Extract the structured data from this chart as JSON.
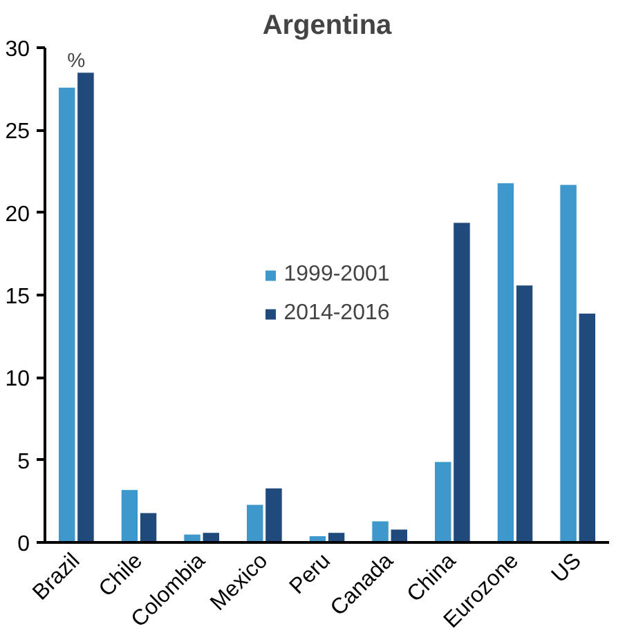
{
  "chart_data": {
    "type": "bar",
    "title": "Argentina",
    "annotations": [
      "%"
    ],
    "categories": [
      "Brazil",
      "Chile",
      "Colombia",
      "Mexico",
      "Peru",
      "Canada",
      "China",
      "Eurozone",
      "US"
    ],
    "series": [
      {
        "name": "1999-2001",
        "color": "#3f98cb",
        "values": [
          27.6,
          3.2,
          0.5,
          2.3,
          0.4,
          1.3,
          4.9,
          21.8,
          21.7
        ]
      },
      {
        "name": "2014-2016",
        "color": "#204a7c",
        "values": [
          28.5,
          1.8,
          0.6,
          3.3,
          0.6,
          0.8,
          19.4,
          15.6,
          13.9
        ]
      }
    ],
    "ylim": [
      0,
      30
    ],
    "yticks": [
      0,
      5,
      10,
      15,
      20,
      25,
      30
    ],
    "grid": false,
    "legend": "center"
  }
}
